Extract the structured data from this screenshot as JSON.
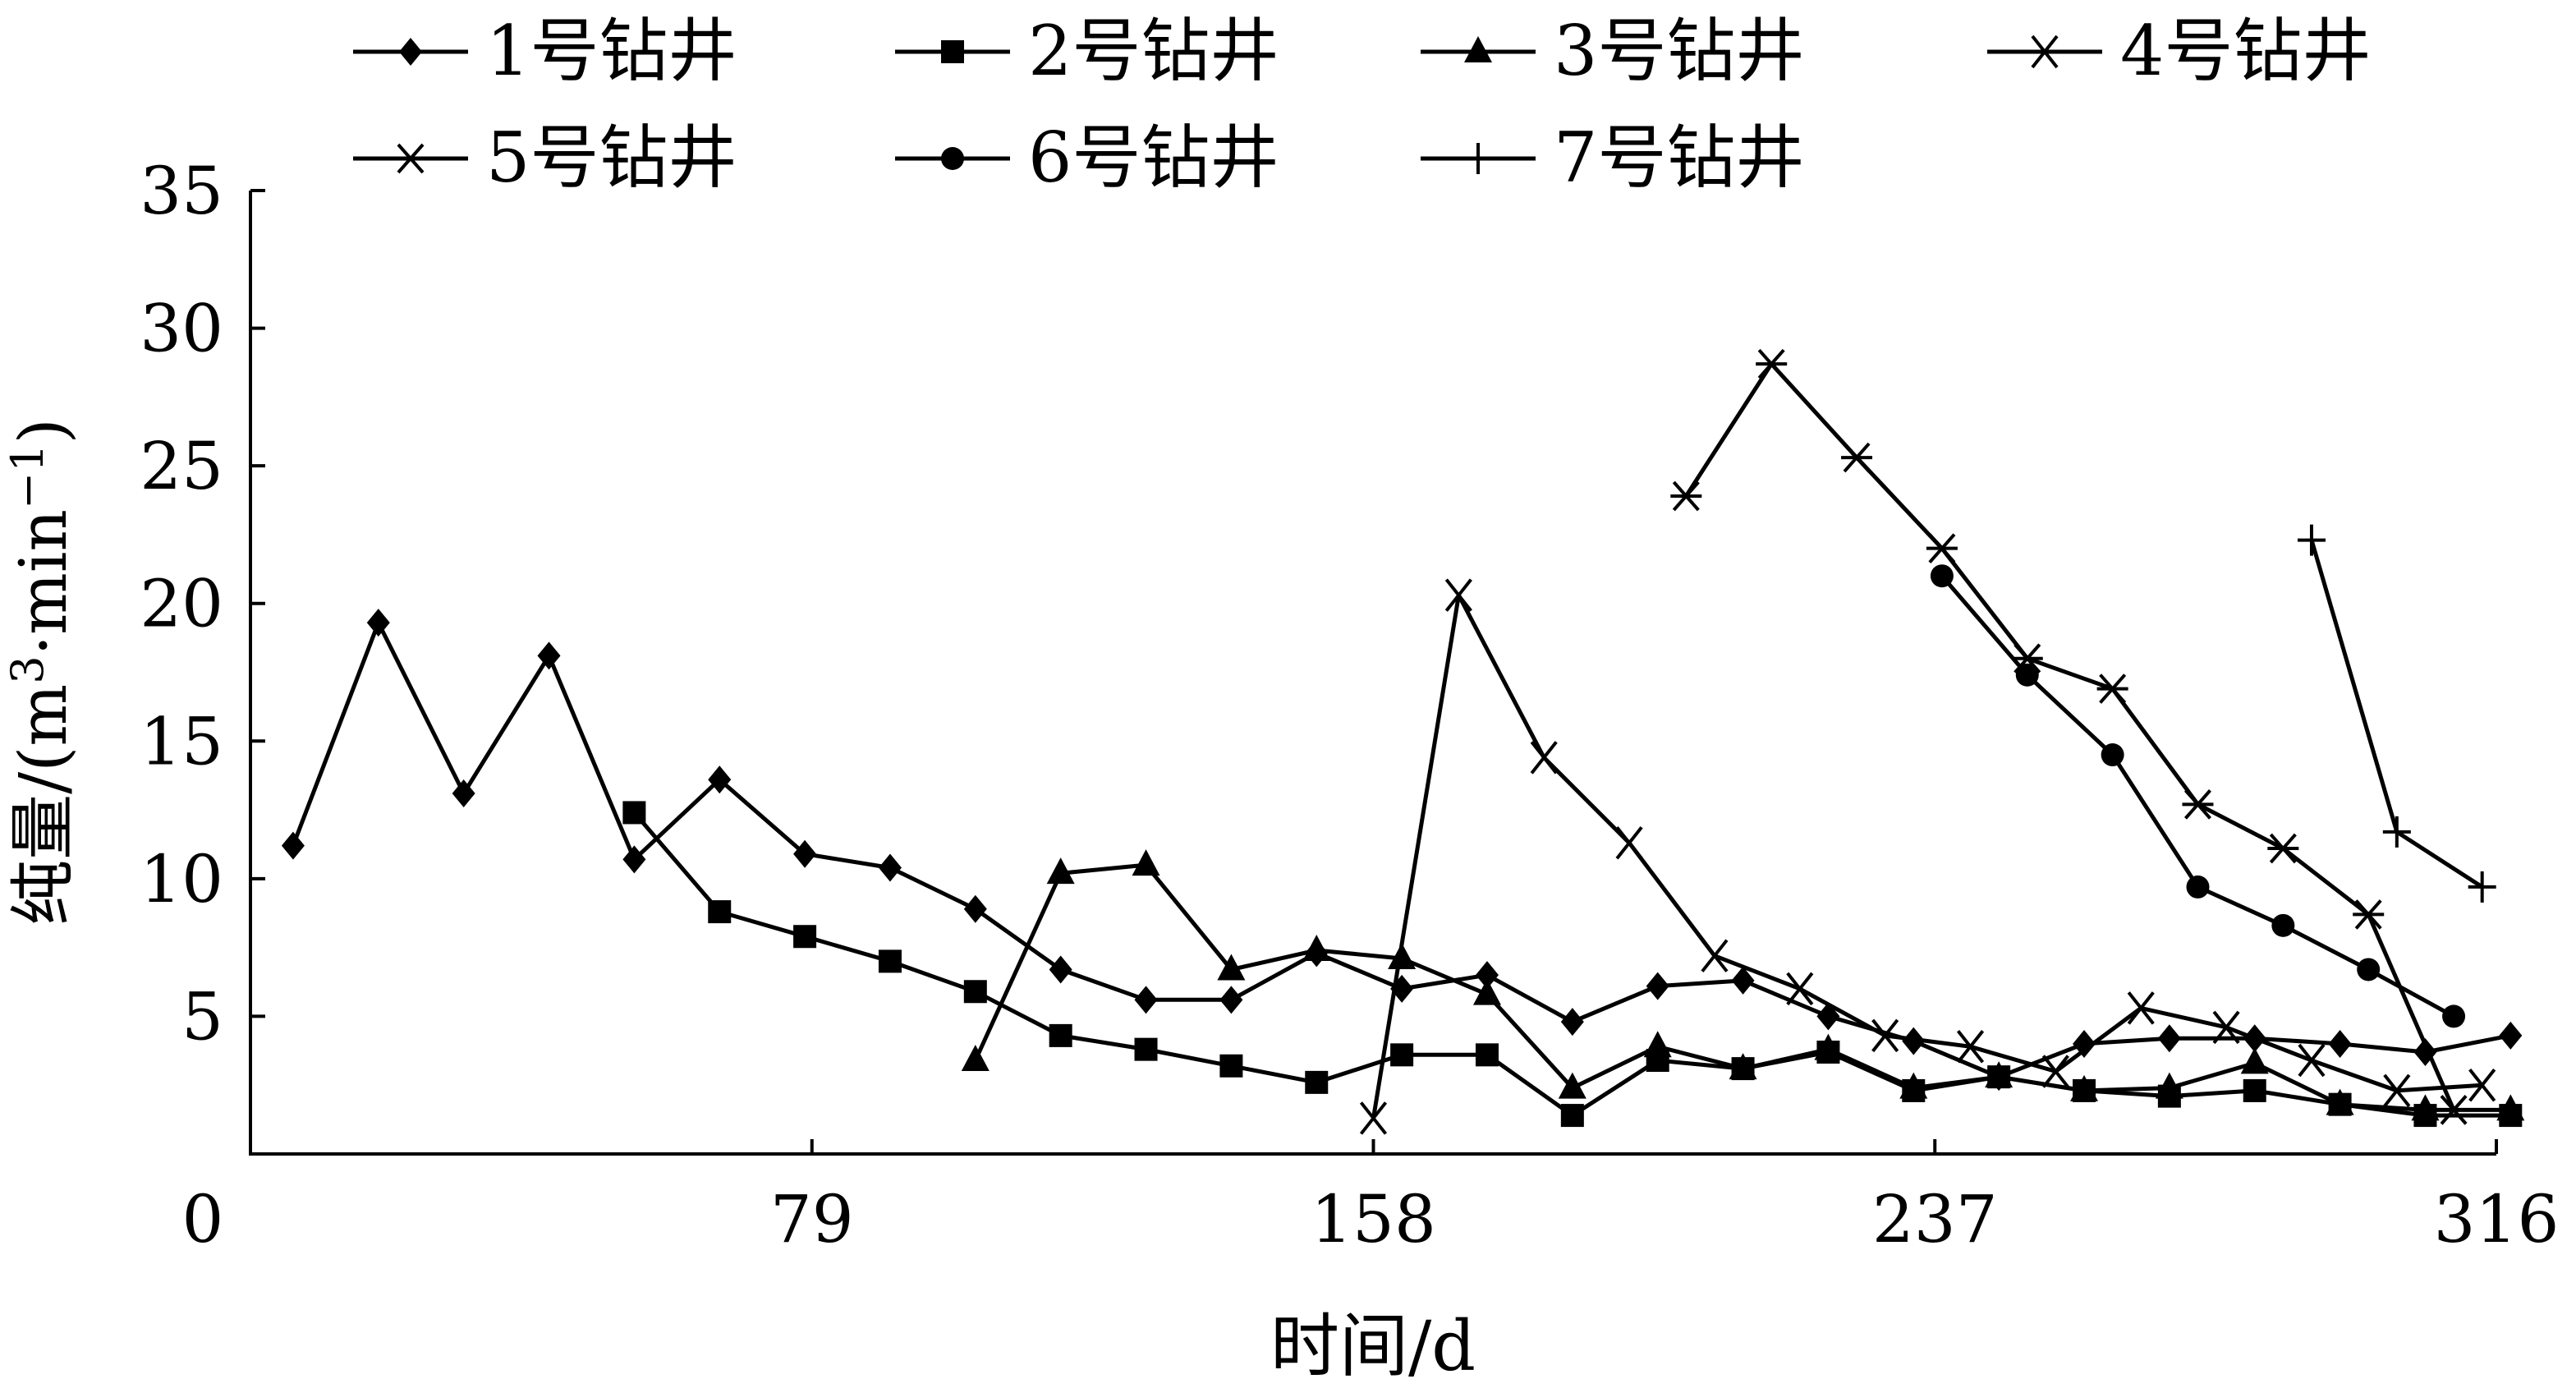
{
  "chart_data": {
    "type": "line",
    "title": "",
    "xlabel": "时间/d",
    "ylabel": "纯量/(m³·min⁻¹)",
    "ylabel_parts": {
      "main": "纯量/(m",
      "sup1": "3",
      "mid": "·min",
      "sup2": "−1",
      "end": ")"
    },
    "xlim": [
      0,
      316
    ],
    "ylim": [
      0,
      35
    ],
    "x_ticks": [
      0,
      79,
      158,
      237,
      316
    ],
    "y_ticks": [
      5,
      10,
      15,
      20,
      25,
      30,
      35
    ],
    "grid": false,
    "legend_position": "top",
    "series": [
      {
        "name": "1号钻井",
        "marker": "diamond",
        "points": [
          [
            6,
            11.2
          ],
          [
            18,
            19.3
          ],
          [
            30,
            13.1
          ],
          [
            42,
            18.1
          ],
          [
            54,
            10.7
          ],
          [
            66,
            13.6
          ],
          [
            78,
            10.9
          ],
          [
            90,
            10.4
          ],
          [
            102,
            8.9
          ],
          [
            114,
            6.7
          ],
          [
            126,
            5.6
          ],
          [
            138,
            5.6
          ],
          [
            150,
            7.3
          ],
          [
            162,
            6
          ],
          [
            174,
            6.5
          ],
          [
            186,
            4.8
          ],
          [
            198,
            6.1
          ],
          [
            210,
            6.3
          ],
          [
            222,
            5
          ],
          [
            234,
            4.1
          ],
          [
            246,
            2.8
          ],
          [
            258,
            4
          ],
          [
            270,
            4.2
          ],
          [
            282,
            4.2
          ],
          [
            294,
            4
          ],
          [
            306,
            3.7
          ],
          [
            318,
            4.3
          ]
        ]
      },
      {
        "name": "2号钻井",
        "marker": "square",
        "points": [
          [
            54,
            12.4
          ],
          [
            66,
            8.8
          ],
          [
            78,
            7.9
          ],
          [
            90,
            7
          ],
          [
            102,
            5.9
          ],
          [
            114,
            4.3
          ],
          [
            126,
            3.8
          ],
          [
            138,
            3.2
          ],
          [
            150,
            2.6
          ],
          [
            162,
            3.6
          ],
          [
            174,
            3.6
          ],
          [
            186,
            1.4
          ],
          [
            198,
            3.4
          ],
          [
            210,
            3.1
          ],
          [
            222,
            3.7
          ],
          [
            234,
            2.3
          ],
          [
            246,
            2.8
          ],
          [
            258,
            2.3
          ],
          [
            270,
            2.1
          ],
          [
            282,
            2.3
          ],
          [
            294,
            1.8
          ],
          [
            306,
            1.4
          ],
          [
            318,
            1.4
          ]
        ]
      },
      {
        "name": "3号钻井",
        "marker": "triangle",
        "points": [
          [
            102,
            3.4
          ],
          [
            114,
            10.2
          ],
          [
            126,
            10.5
          ],
          [
            138,
            6.7
          ],
          [
            150,
            7.4
          ],
          [
            162,
            7.1
          ],
          [
            174,
            5.8
          ],
          [
            186,
            2.4
          ],
          [
            198,
            3.9
          ],
          [
            210,
            3.1
          ],
          [
            222,
            3.8
          ],
          [
            234,
            2.4
          ],
          [
            246,
            2.8
          ],
          [
            258,
            2.3
          ],
          [
            270,
            2.4
          ],
          [
            282,
            3.3
          ],
          [
            294,
            1.8
          ],
          [
            306,
            1.6
          ],
          [
            318,
            1.6
          ]
        ]
      },
      {
        "name": "4号钻井",
        "marker": "x",
        "points": [
          [
            158,
            1.3
          ],
          [
            170,
            20.3
          ],
          [
            182,
            14.4
          ],
          [
            194,
            11.3
          ],
          [
            206,
            7.2
          ],
          [
            218,
            6
          ],
          [
            230,
            4.3
          ],
          [
            242,
            3.9
          ],
          [
            254,
            3
          ],
          [
            266,
            5.3
          ],
          [
            278,
            4.6
          ],
          [
            290,
            3.4
          ],
          [
            302,
            2.3
          ],
          [
            314,
            2.5
          ]
        ]
      },
      {
        "name": "5号钻井",
        "marker": "asterisk",
        "points": [
          [
            202,
            23.9
          ],
          [
            214,
            28.7
          ],
          [
            226,
            25.3
          ],
          [
            238,
            22
          ],
          [
            250,
            18
          ],
          [
            262,
            16.9
          ],
          [
            274,
            12.7
          ],
          [
            286,
            11.1
          ],
          [
            298,
            8.7
          ],
          [
            310,
            1.6
          ]
        ]
      },
      {
        "name": "6号钻井",
        "marker": "circle",
        "points": [
          [
            238,
            21
          ],
          [
            250,
            17.4
          ],
          [
            262,
            14.5
          ],
          [
            274,
            9.7
          ],
          [
            286,
            8.3
          ],
          [
            298,
            6.7
          ],
          [
            310,
            5
          ]
        ]
      },
      {
        "name": "7号钻井",
        "marker": "plus",
        "points": [
          [
            290,
            22.3
          ],
          [
            302,
            11.7
          ],
          [
            314,
            9.7
          ]
        ]
      }
    ]
  }
}
